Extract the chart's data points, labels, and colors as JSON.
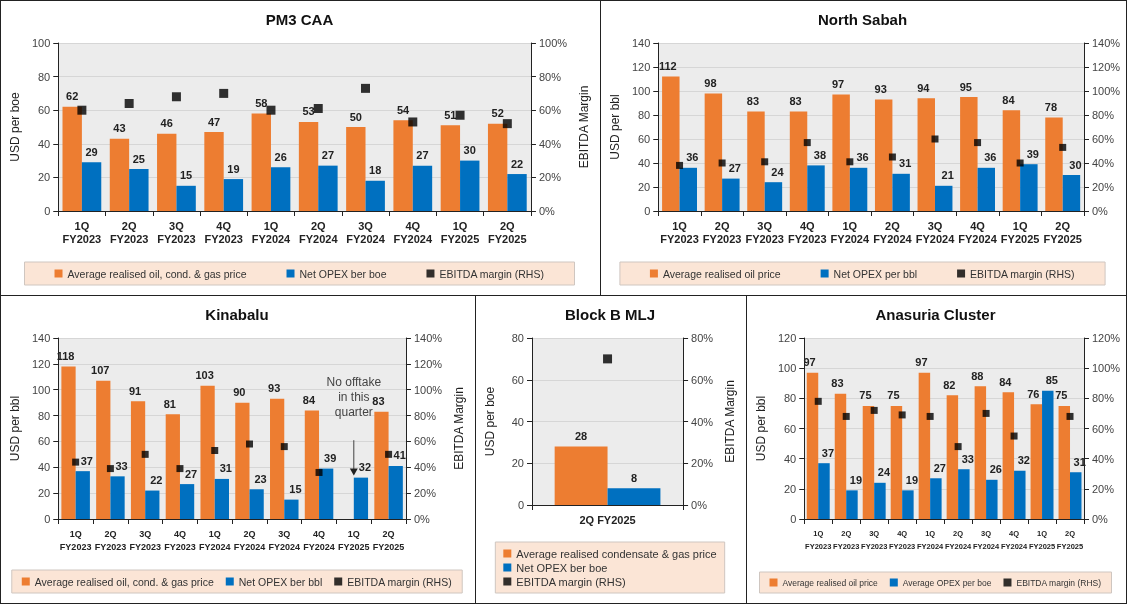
{
  "chart_data": [
    {
      "type": "bar",
      "title": "PM3 CAA",
      "ylabel": "USD per boe",
      "y2label": "EBITDA Margin",
      "categories": [
        "1Q\nFY2023",
        "2Q\nFY2023",
        "3Q\nFY2023",
        "4Q\nFY2023",
        "1Q\nFY2024",
        "2Q\nFY2024",
        "3Q\nFY2024",
        "4Q\nFY2024",
        "1Q\nFY2025",
        "2Q\nFY2025"
      ],
      "series": [
        {
          "name": "Average realised oil, cond. & gas price",
          "color": "#ed7d31",
          "data_labels": true,
          "values": [
            62,
            43,
            46,
            47,
            58,
            53,
            50,
            54,
            51,
            52
          ]
        },
        {
          "name": "Net OPEX ber boe",
          "color": "#0070c0",
          "data_labels": true,
          "values": [
            29,
            25,
            15,
            19,
            26,
            27,
            18,
            27,
            30,
            22
          ]
        },
        {
          "name": "EBITDA margin (RHS)",
          "type": "scatter",
          "marker": "square",
          "axis": "y2",
          "color": "#000000",
          "values": [
            60,
            64,
            68,
            70,
            60,
            61,
            73,
            53,
            57,
            52
          ]
        }
      ],
      "ylim": [
        0,
        100
      ],
      "yticks": [
        0,
        20,
        40,
        60,
        80,
        100
      ],
      "y2lim": [
        0,
        100
      ],
      "y2ticks": [
        {
          "value": 0,
          "label": "0%"
        },
        {
          "value": 20,
          "label": "20%"
        },
        {
          "value": 40,
          "label": "40%"
        },
        {
          "value": 60,
          "label": "60%"
        },
        {
          "value": 80,
          "label": "80%"
        },
        {
          "value": 100,
          "label": "100%"
        }
      ],
      "grid": "y",
      "legend": "bottom"
    },
    {
      "type": "bar",
      "title": "North Sabah",
      "ylabel": "USD per bbl",
      "categories": [
        "1Q\nFY2023",
        "2Q\nFY2023",
        "3Q\nFY2023",
        "4Q\nFY2023",
        "1Q\nFY2024",
        "2Q\nFY2024",
        "3Q\nFY2024",
        "4Q\nFY2024",
        "1Q\nFY2025",
        "2Q\nFY2025"
      ],
      "series": [
        {
          "name": "Average realised oil price",
          "color": "#ed7d31",
          "data_labels": true,
          "values": [
            112,
            98,
            83,
            83,
            97,
            93,
            94,
            95,
            84,
            78
          ]
        },
        {
          "name": "Net OPEX per bbl",
          "color": "#0070c0",
          "data_labels": true,
          "values": [
            36,
            27,
            24,
            38,
            36,
            31,
            21,
            36,
            39,
            30
          ]
        },
        {
          "name": "EBITDA margin (RHS)",
          "type": "scatter",
          "marker": "square",
          "axis": "y2",
          "color": "#000000",
          "values": [
            38,
            40,
            41,
            57,
            41,
            45,
            60,
            57,
            40,
            53
          ]
        }
      ],
      "ylim": [
        0,
        140
      ],
      "yticks": [
        0,
        20,
        40,
        60,
        80,
        100,
        120,
        140
      ],
      "y2lim": [
        0,
        140
      ],
      "y2ticks": [
        {
          "value": 0,
          "label": "0%"
        },
        {
          "value": 20,
          "label": "20%"
        },
        {
          "value": 40,
          "label": "40%"
        },
        {
          "value": 60,
          "label": "60%"
        },
        {
          "value": 80,
          "label": "80%"
        },
        {
          "value": 100,
          "label": "100%"
        },
        {
          "value": 120,
          "label": "120%"
        },
        {
          "value": 140,
          "label": "140%"
        }
      ],
      "grid": "y",
      "legend": "bottom"
    },
    {
      "type": "bar",
      "title": "Kinabalu",
      "ylabel": "USD per bbl",
      "y2label": "EBITDA Margin",
      "categories": [
        "1Q\nFY2023",
        "2Q\nFY2023",
        "3Q\nFY2023",
        "4Q\nFY2023",
        "1Q\nFY2024",
        "2Q\nFY2024",
        "3Q\nFY2024",
        "4Q\nFY2024",
        "1Q\nFY2025",
        "2Q\nFY2025"
      ],
      "series": [
        {
          "name": "Average realised oil, cond. & gas price",
          "color": "#ed7d31",
          "data_labels": true,
          "values": [
            118,
            107,
            91,
            81,
            103,
            90,
            93,
            84,
            null,
            83
          ]
        },
        {
          "name": "Net OPEX ber bbl",
          "color": "#0070c0",
          "data_labels": true,
          "values": [
            37,
            33,
            22,
            27,
            31,
            23,
            15,
            39,
            32,
            41
          ]
        },
        {
          "name": "EBITDA margin (RHS)",
          "type": "scatter",
          "marker": "square",
          "axis": "y2",
          "color": "#000000",
          "values": [
            44,
            39,
            50,
            39,
            53,
            58,
            56,
            36,
            null,
            50
          ]
        }
      ],
      "ylim": [
        0,
        140
      ],
      "yticks": [
        0,
        20,
        40,
        60,
        80,
        100,
        120,
        140
      ],
      "y2lim": [
        0,
        140
      ],
      "y2ticks": [
        {
          "value": 0,
          "label": "0%"
        },
        {
          "value": 20,
          "label": "20%"
        },
        {
          "value": 40,
          "label": "40%"
        },
        {
          "value": 60,
          "label": "60%"
        },
        {
          "value": 80,
          "label": "80%"
        },
        {
          "value": 100,
          "label": "100%"
        },
        {
          "value": 120,
          "label": "120%"
        },
        {
          "value": 140,
          "label": "140%"
        }
      ],
      "annotations": [
        "No offtake in this quarter"
      ],
      "grid": "y",
      "legend": "bottom"
    },
    {
      "type": "bar",
      "title": "Block B MLJ",
      "ylabel": "USD per boe",
      "y2label": "EBITDA Margin",
      "categories": [
        "2Q FY2025"
      ],
      "series": [
        {
          "name": "Average realised condensate & gas price",
          "color": "#ed7d31",
          "data_labels": true,
          "values": [
            28
          ]
        },
        {
          "name": "Net OPEX ber boe",
          "color": "#0070c0",
          "data_labels": true,
          "values": [
            8
          ]
        },
        {
          "name": "EBITDA margin (RHS)",
          "type": "scatter",
          "marker": "square",
          "axis": "y2",
          "color": "#000000",
          "values": [
            70
          ]
        }
      ],
      "ylim": [
        0,
        80
      ],
      "yticks": [
        0,
        20,
        40,
        60,
        80
      ],
      "y2lim": [
        0,
        80
      ],
      "y2ticks": [
        {
          "value": 0,
          "label": "0%"
        },
        {
          "value": 20,
          "label": "20%"
        },
        {
          "value": 40,
          "label": "40%"
        },
        {
          "value": 60,
          "label": "60%"
        },
        {
          "value": 80,
          "label": "80%"
        }
      ],
      "grid": "y",
      "legend": "bottom"
    },
    {
      "type": "bar",
      "title": "Anasuria Cluster",
      "ylabel": "USD per bbl",
      "categories": [
        "1Q\nFY2023",
        "2Q\nFY2023",
        "3Q\nFY2023",
        "4Q\nFY2023",
        "1Q\nFY2024",
        "2Q\nFY2024",
        "3Q\nFY2024",
        "4Q\nFY2024",
        "1Q\nFY2025",
        "2Q\nFY2025"
      ],
      "series": [
        {
          "name": "Average realised oil price",
          "color": "#ed7d31",
          "data_labels": true,
          "values": [
            97,
            83,
            75,
            75,
            97,
            82,
            88,
            84,
            76,
            75
          ]
        },
        {
          "name": "Average OPEX per boe",
          "color": "#0070c0",
          "data_labels": true,
          "values": [
            37,
            19,
            24,
            19,
            27,
            33,
            26,
            32,
            85,
            31
          ]
        },
        {
          "name": "EBITDA margin (RHS)",
          "type": "scatter",
          "marker": "square",
          "axis": "y2",
          "color": "#000000",
          "values": [
            78,
            68,
            72,
            69,
            68,
            48,
            70,
            55,
            null,
            68
          ]
        }
      ],
      "ylim": [
        0,
        120
      ],
      "yticks": [
        0,
        20,
        40,
        60,
        80,
        100,
        120
      ],
      "y2lim": [
        0,
        120
      ],
      "y2ticks": [
        {
          "value": 0,
          "label": "0%"
        },
        {
          "value": 20,
          "label": "20%"
        },
        {
          "value": 40,
          "label": "40%"
        },
        {
          "value": 60,
          "label": "60%"
        },
        {
          "value": 80,
          "label": "80%"
        },
        {
          "value": 100,
          "label": "100%"
        },
        {
          "value": 120,
          "label": "120%"
        }
      ],
      "grid": "y",
      "legend": "bottom"
    }
  ]
}
